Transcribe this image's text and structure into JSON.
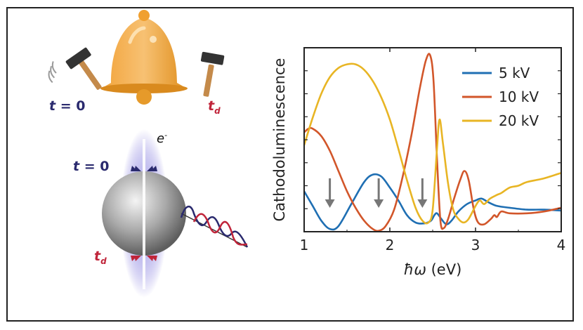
{
  "illustration": {
    "t0_top": {
      "t": "t",
      "eq": " = 0"
    },
    "td_top": {
      "t": "t",
      "sub": "d"
    },
    "t0_sphere": {
      "t": "t",
      "eq": " = 0"
    },
    "td_sphere": {
      "t": "t",
      "sub": "d"
    },
    "electron": {
      "e": "e",
      "sup": "-"
    },
    "colors": {
      "navy": "#2a2a6e",
      "crimson": "#c0243a",
      "bell": "#f5a623",
      "glow": "#6a5fd6"
    }
  },
  "chart_data": {
    "type": "line",
    "xlabel": {
      "hbar": "ħ",
      "omega": "ω",
      "unit": " (eV)"
    },
    "ylabel": "Cathodoluminescence",
    "xlim": [
      1,
      4
    ],
    "ylim": [
      0,
      1
    ],
    "xticks": [
      "1",
      "2",
      "3",
      "4"
    ],
    "grid": false,
    "legend_position": "top-right",
    "series": [
      {
        "name": "5 kV",
        "color": "#1f6fb3",
        "points": [
          [
            1.0,
            0.22
          ],
          [
            1.1,
            0.14
          ],
          [
            1.2,
            0.06
          ],
          [
            1.3,
            0.015
          ],
          [
            1.4,
            0.03
          ],
          [
            1.55,
            0.15
          ],
          [
            1.7,
            0.27
          ],
          [
            1.8,
            0.31
          ],
          [
            1.9,
            0.3
          ],
          [
            2.0,
            0.24
          ],
          [
            2.1,
            0.17
          ],
          [
            2.2,
            0.09
          ],
          [
            2.3,
            0.05
          ],
          [
            2.4,
            0.045
          ],
          [
            2.48,
            0.06
          ],
          [
            2.52,
            0.09
          ],
          [
            2.55,
            0.1
          ],
          [
            2.6,
            0.07
          ],
          [
            2.66,
            0.04
          ],
          [
            2.72,
            0.06
          ],
          [
            2.8,
            0.11
          ],
          [
            2.9,
            0.15
          ],
          [
            3.0,
            0.17
          ],
          [
            3.07,
            0.18
          ],
          [
            3.15,
            0.16
          ],
          [
            3.25,
            0.14
          ],
          [
            3.4,
            0.13
          ],
          [
            3.6,
            0.12
          ],
          [
            3.8,
            0.12
          ],
          [
            4.0,
            0.115
          ]
        ]
      },
      {
        "name": "10 kV",
        "color": "#d2562a",
        "points": [
          [
            1.0,
            0.54
          ],
          [
            1.05,
            0.56
          ],
          [
            1.1,
            0.56
          ],
          [
            1.2,
            0.52
          ],
          [
            1.3,
            0.44
          ],
          [
            1.4,
            0.33
          ],
          [
            1.5,
            0.22
          ],
          [
            1.6,
            0.13
          ],
          [
            1.7,
            0.06
          ],
          [
            1.8,
            0.015
          ],
          [
            1.87,
            0.005
          ],
          [
            1.95,
            0.03
          ],
          [
            2.05,
            0.12
          ],
          [
            2.15,
            0.3
          ],
          [
            2.25,
            0.52
          ],
          [
            2.35,
            0.78
          ],
          [
            2.42,
            0.93
          ],
          [
            2.47,
            0.96
          ],
          [
            2.51,
            0.82
          ],
          [
            2.55,
            0.4
          ],
          [
            2.59,
            0.06
          ],
          [
            2.63,
            0.02
          ],
          [
            2.68,
            0.07
          ],
          [
            2.75,
            0.18
          ],
          [
            2.82,
            0.28
          ],
          [
            2.87,
            0.33
          ],
          [
            2.92,
            0.28
          ],
          [
            2.98,
            0.12
          ],
          [
            3.03,
            0.05
          ],
          [
            3.1,
            0.04
          ],
          [
            3.18,
            0.07
          ],
          [
            3.22,
            0.09
          ],
          [
            3.25,
            0.08
          ],
          [
            3.3,
            0.11
          ],
          [
            3.4,
            0.1
          ],
          [
            3.6,
            0.1
          ],
          [
            3.8,
            0.11
          ],
          [
            4.0,
            0.13
          ]
        ]
      },
      {
        "name": "20 kV",
        "color": "#e8b524",
        "points": [
          [
            1.0,
            0.47
          ],
          [
            1.1,
            0.62
          ],
          [
            1.2,
            0.75
          ],
          [
            1.3,
            0.84
          ],
          [
            1.4,
            0.89
          ],
          [
            1.5,
            0.91
          ],
          [
            1.6,
            0.91
          ],
          [
            1.7,
            0.88
          ],
          [
            1.8,
            0.82
          ],
          [
            1.9,
            0.73
          ],
          [
            2.0,
            0.61
          ],
          [
            2.1,
            0.45
          ],
          [
            2.2,
            0.28
          ],
          [
            2.3,
            0.13
          ],
          [
            2.38,
            0.06
          ],
          [
            2.45,
            0.05
          ],
          [
            2.5,
            0.12
          ],
          [
            2.55,
            0.45
          ],
          [
            2.58,
            0.61
          ],
          [
            2.62,
            0.48
          ],
          [
            2.68,
            0.26
          ],
          [
            2.74,
            0.12
          ],
          [
            2.8,
            0.07
          ],
          [
            2.86,
            0.05
          ],
          [
            2.92,
            0.07
          ],
          [
            3.0,
            0.14
          ],
          [
            3.05,
            0.17
          ],
          [
            3.1,
            0.15
          ],
          [
            3.17,
            0.18
          ],
          [
            3.25,
            0.2
          ],
          [
            3.3,
            0.21
          ],
          [
            3.4,
            0.24
          ],
          [
            3.5,
            0.25
          ],
          [
            3.6,
            0.27
          ],
          [
            3.8,
            0.29
          ],
          [
            4.0,
            0.32
          ]
        ]
      }
    ],
    "arrows_x": [
      1.3,
      1.87,
      2.38
    ]
  }
}
